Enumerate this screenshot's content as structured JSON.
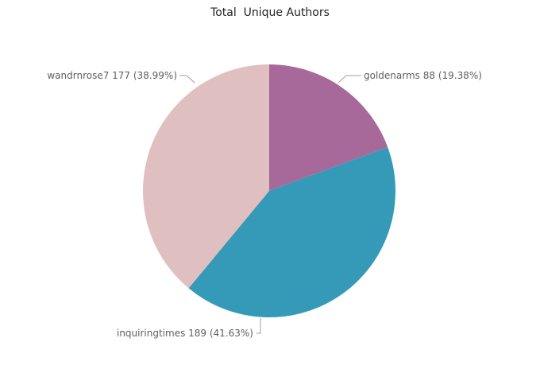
{
  "chart_data": {
    "type": "pie",
    "title": "Total  Unique Authors",
    "slices": [
      {
        "label": "goldenarms",
        "value": 88,
        "percent": "19.38%",
        "color": "#a66999"
      },
      {
        "label": "inquiringtimes",
        "value": 189,
        "percent": "41.63%",
        "color": "#3599b8"
      },
      {
        "label": "wandrnrose7",
        "value": 177,
        "percent": "38.99%",
        "color": "#dfbfbf"
      }
    ],
    "data_labels": [
      "goldenarms 88 (19.38%)",
      "inquiringtimes 189 (41.63%)",
      "wandrnrose7 177 (38.99%)"
    ],
    "legend": "none"
  }
}
